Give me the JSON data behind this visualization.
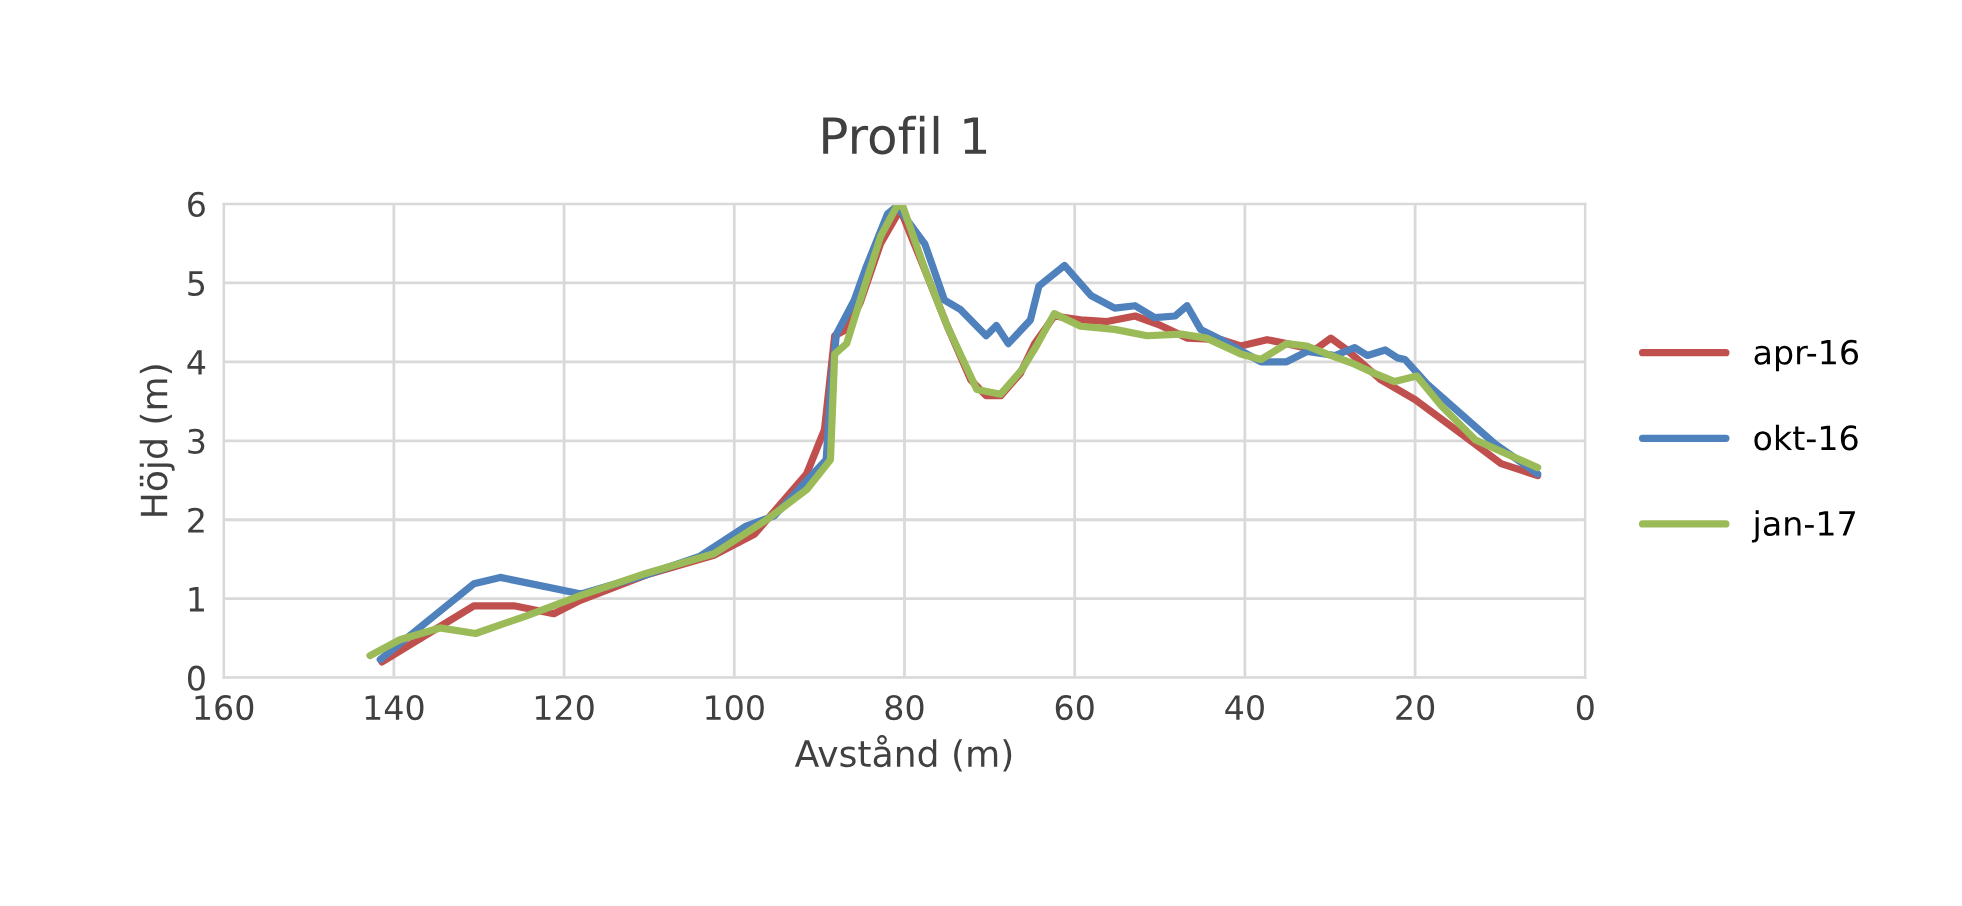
{
  "chart_data": {
    "type": "line",
    "title": "Profil 1",
    "xlabel": "Avstånd (m)",
    "ylabel": "Höjd (m)",
    "xlim": [
      160,
      0
    ],
    "xticks": [
      160,
      140,
      120,
      100,
      80,
      60,
      40,
      20,
      0
    ],
    "ylim": [
      0,
      6
    ],
    "yticks": [
      0,
      1,
      2,
      3,
      4,
      5,
      6
    ],
    "grid": true,
    "legend": "right",
    "marker": "none",
    "line_style": "solid",
    "series": [
      {
        "name": "apr-16",
        "color": "#c0504d",
        "x": [
          141.4,
          130.6,
          125.9,
          121.2,
          118.1,
          110.4,
          102.4,
          97.6,
          91.5,
          89.4,
          88.2,
          86.8,
          85.2,
          82.8,
          80.5,
          77.4,
          75,
          72.2,
          70.4,
          68.7,
          66.4,
          64.7,
          62.4,
          59.3,
          56.2,
          52.9,
          49.9,
          46.8,
          42.8,
          40.5,
          37.4,
          35.1,
          31.8,
          29.9,
          28,
          24,
          20,
          14.6,
          9.9,
          5.6
        ],
        "values": [
          0.2,
          0.91,
          0.91,
          0.81,
          0.98,
          1.3,
          1.55,
          1.82,
          2.58,
          3.14,
          4.33,
          4.41,
          4.75,
          5.5,
          5.93,
          5.11,
          4.46,
          3.77,
          3.57,
          3.57,
          3.85,
          4.23,
          4.58,
          4.53,
          4.51,
          4.58,
          4.46,
          4.3,
          4.28,
          4.2,
          4.28,
          4.23,
          4.15,
          4.3,
          4.15,
          3.77,
          3.52,
          3.09,
          2.71,
          2.56
        ]
      },
      {
        "name": "okt-16",
        "color": "#4f81bd",
        "x": [
          141.6,
          130.6,
          127.5,
          118,
          110.4,
          104,
          98.6,
          95.3,
          89.2,
          88.7,
          88,
          85.9,
          84.5,
          82,
          80.9,
          77.6,
          75.3,
          73.4,
          70.4,
          69.2,
          67.8,
          65.2,
          64.2,
          61.2,
          58.1,
          55.3,
          52.9,
          50.6,
          48.2,
          46.8,
          45.2,
          42.8,
          38.1,
          35.1,
          32.7,
          29.4,
          27.1,
          25.6,
          23.5,
          22.1,
          21.2,
          18.6,
          14.6,
          10.6,
          5.6
        ],
        "values": [
          0.23,
          1.19,
          1.27,
          1.06,
          1.3,
          1.54,
          1.92,
          2.05,
          2.76,
          3.6,
          4.35,
          4.78,
          5.2,
          5.87,
          5.97,
          5.49,
          4.78,
          4.66,
          4.33,
          4.46,
          4.23,
          4.53,
          4.96,
          5.22,
          4.84,
          4.68,
          4.71,
          4.56,
          4.58,
          4.71,
          4.41,
          4.28,
          4.0,
          4.0,
          4.13,
          4.08,
          4.18,
          4.08,
          4.15,
          4.05,
          4.03,
          3.72,
          3.34,
          2.96,
          2.58
        ]
      },
      {
        "name": "jan-17",
        "color": "#9bbb59",
        "x": [
          142.8,
          139.3,
          134.6,
          130.4,
          124.5,
          118.1,
          110.4,
          102.4,
          96.2,
          91.5,
          88.7,
          88.2,
          86.8,
          85.2,
          82.8,
          80.9,
          80.2,
          77.4,
          75,
          71.5,
          68.7,
          66.2,
          64.5,
          62.4,
          59.3,
          55.3,
          51.5,
          47.5,
          44.5,
          40.5,
          38.1,
          35.1,
          32.7,
          30.4,
          27.1,
          24.7,
          22.4,
          19.8,
          16.9,
          12.9,
          5.6
        ],
        "values": [
          0.28,
          0.48,
          0.63,
          0.56,
          0.78,
          1.04,
          1.32,
          1.57,
          2.0,
          2.38,
          2.76,
          4.1,
          4.23,
          4.78,
          5.59,
          5.97,
          5.97,
          5.11,
          4.46,
          3.65,
          3.59,
          3.9,
          4.2,
          4.61,
          4.45,
          4.41,
          4.33,
          4.35,
          4.3,
          4.1,
          4.03,
          4.23,
          4.2,
          4.1,
          3.97,
          3.85,
          3.75,
          3.82,
          3.44,
          3.01,
          2.66
        ]
      }
    ]
  }
}
